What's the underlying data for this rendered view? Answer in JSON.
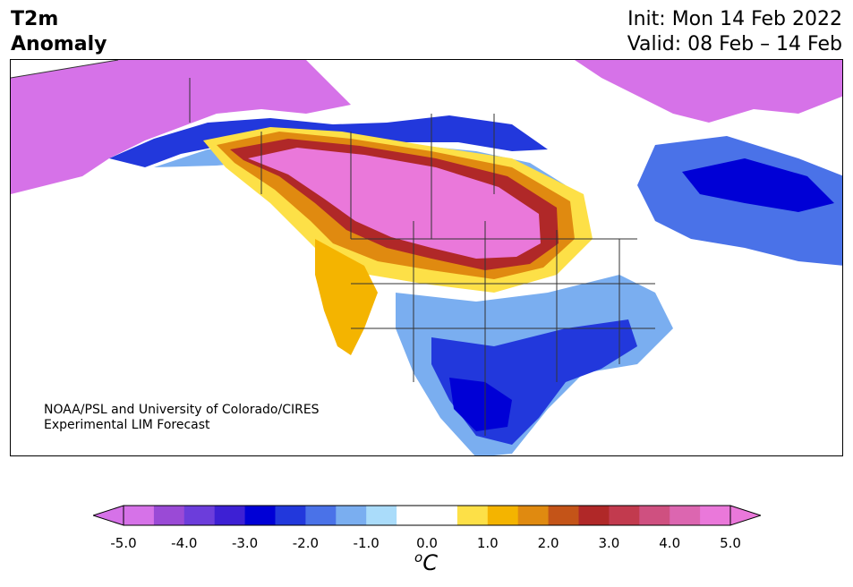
{
  "title": {
    "left_line1": "T2m",
    "left_line2": "Anomaly",
    "right_line1": "Init: Mon 14 Feb 2022",
    "right_line2": "Valid: 08 Feb – 14 Feb"
  },
  "credit": {
    "line1": "NOAA/PSL and University of Colorado/CIRES",
    "line2": "Experimental LIM Forecast"
  },
  "colorbar": {
    "colors": [
      "#d672e8",
      "#9a4ad6",
      "#6c3ddb",
      "#3d20d4",
      "#0000d6",
      "#2238dc",
      "#4a72e8",
      "#7aaef0",
      "#aadcfa",
      "#ffffff",
      "#ffffff",
      "#fde047",
      "#f4b400",
      "#e08a10",
      "#c45418",
      "#b02828",
      "#c23a4e",
      "#cf5080",
      "#dc66b0",
      "#ea78da"
    ],
    "ticks": [
      "-5.0",
      "-4.0",
      "-3.0",
      "-2.0",
      "-1.0",
      "0.0",
      "1.0",
      "2.0",
      "3.0",
      "4.0",
      "5.0"
    ],
    "unit_base": "C",
    "unit_sup": "o"
  },
  "map": {
    "ocean": "#ffffff",
    "land_outline": "#333333",
    "anomaly_colors": {
      "extreme_warm": "#ea78da",
      "warm_ring": [
        "#dc66b0",
        "#c23a4e",
        "#b02828",
        "#c45418",
        "#e08a10",
        "#f4b400",
        "#fde047"
      ],
      "cold_ring": [
        "#aadcfa",
        "#7aaef0",
        "#4a72e8",
        "#2238dc",
        "#0000d6"
      ],
      "extreme_cold": "#d672e8"
    }
  }
}
